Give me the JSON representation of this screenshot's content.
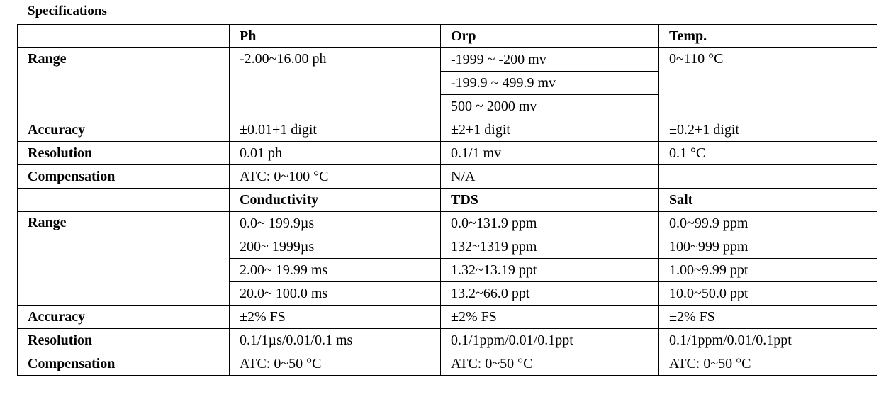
{
  "title": "Specifications",
  "group1": {
    "headers": [
      "Ph",
      "Orp",
      "Temp."
    ],
    "range_label": "Range",
    "range_ph": "-2.00~16.00 ph",
    "range_orp": [
      "-1999 ~ -200 mv",
      "-199.9 ~ 499.9 mv",
      "500 ~ 2000 mv"
    ],
    "range_temp": "0~110 °C",
    "accuracy_label": "Accuracy",
    "accuracy": [
      "±0.01+1 digit",
      "±2+1 digit",
      "±0.2+1 digit"
    ],
    "resolution_label": "Resolution",
    "resolution": [
      "0.01 ph",
      "0.1/1 mv",
      "0.1 °C"
    ],
    "compensation_label": "Compensation",
    "compensation": [
      "ATC: 0~100 °C",
      "N/A",
      ""
    ]
  },
  "group2": {
    "headers": [
      "Conductivity",
      "TDS",
      "Salt"
    ],
    "range_label": "Range",
    "range_rows": [
      [
        "0.0~ 199.9µs",
        "0.0~131.9 ppm",
        "0.0~99.9 ppm"
      ],
      [
        "200~ 1999µs",
        "132~1319 ppm",
        "100~999 ppm"
      ],
      [
        "2.00~ 19.99 ms",
        "1.32~13.19 ppt",
        "1.00~9.99 ppt"
      ],
      [
        "20.0~ 100.0 ms",
        "13.2~66.0 ppt",
        "10.0~50.0 ppt"
      ]
    ],
    "accuracy_label": "Accuracy",
    "accuracy": [
      "±2% FS",
      "±2% FS",
      "±2% FS"
    ],
    "resolution_label": "Resolution",
    "resolution": [
      "0.1/1µs/0.01/0.1 ms",
      "0.1/1ppm/0.01/0.1ppt",
      "0.1/1ppm/0.01/0.1ppt"
    ],
    "compensation_label": "Compensation",
    "compensation": [
      "ATC: 0~50 °C",
      "ATC: 0~50 °C",
      "ATC: 0~50 °C"
    ]
  }
}
